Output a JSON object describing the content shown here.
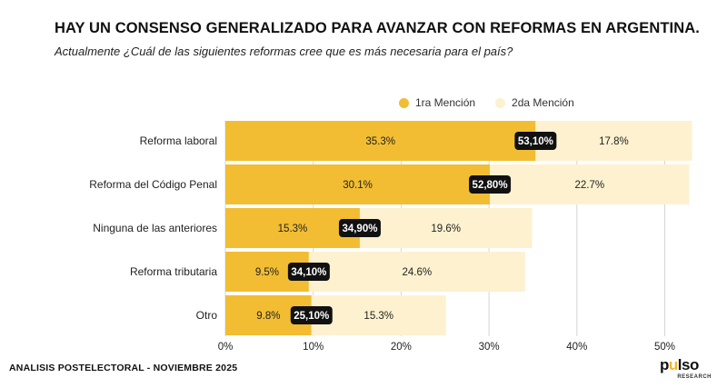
{
  "title": "HAY UN CONSENSO GENERALIZADO PARA AVANZAR CON REFORMAS EN ARGENTINA.",
  "subtitle": "Actualmente ¿Cuál de las siguientes reformas cree que es más necesaria para el país?",
  "footer": "ANALISIS POSTELECTORAL - NOVIEMBRE 2025",
  "logo": {
    "word_a": "p",
    "word_mark": "u",
    "word_b": "lso",
    "sub": "RESEARCH"
  },
  "colors": {
    "primary": "#f2bd32",
    "secondary": "#fdf1cf",
    "label_bg": "#111111",
    "grid": "#d6d6d6"
  },
  "chart_data": {
    "type": "bar",
    "orientation": "horizontal",
    "stacked": true,
    "categories": [
      "Reforma laboral",
      "Reforma del Código Penal",
      "Ninguna de las anteriores",
      "Reforma tributaria",
      "Otro"
    ],
    "series": [
      {
        "name": "1ra Mención",
        "values": [
          35.3,
          30.1,
          15.3,
          9.5,
          9.8
        ],
        "labels": [
          "35.3%",
          "30.1%",
          "15.3%",
          "9.5%",
          "9.8%"
        ]
      },
      {
        "name": "2da Mención",
        "values": [
          17.8,
          22.7,
          19.6,
          24.6,
          15.3
        ],
        "labels": [
          "17.8%",
          "22.7%",
          "19.6%",
          "24.6%",
          "15.3%"
        ]
      }
    ],
    "totals": [
      "53,10%",
      "52,80%",
      "34,90%",
      "34,10%",
      "25,10%"
    ],
    "xlim": [
      0,
      53
    ],
    "xticks": [
      0,
      10,
      20,
      30,
      40,
      50
    ],
    "xtick_labels": [
      "0%",
      "10%",
      "20%",
      "30%",
      "40%",
      "50%"
    ],
    "grid": true,
    "legend_position": "top-right"
  }
}
